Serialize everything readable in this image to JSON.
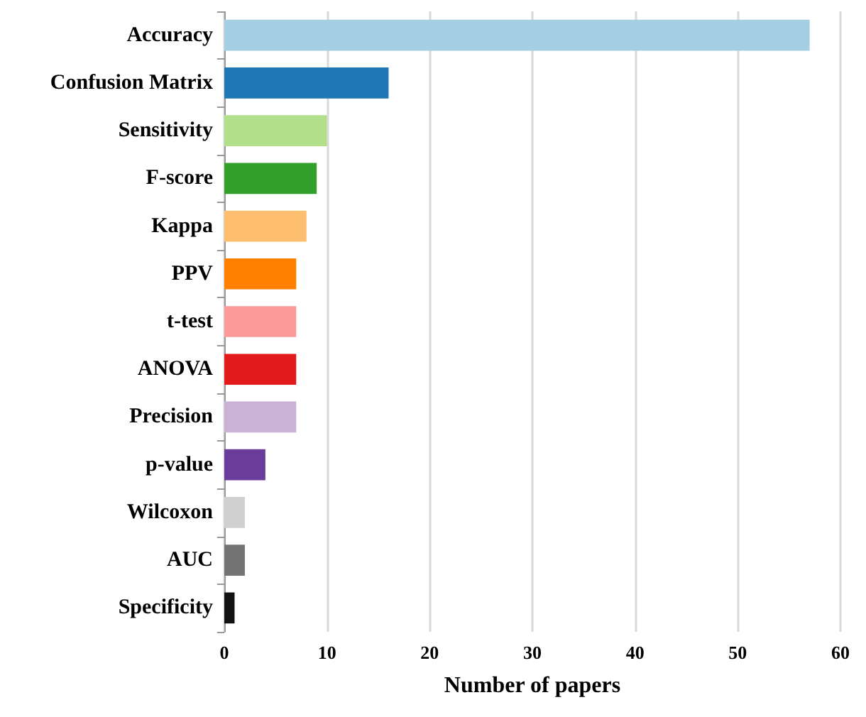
{
  "chart_data": {
    "type": "bar",
    "orientation": "horizontal",
    "xlabel": "Number of papers",
    "categories": [
      "Accuracy",
      "Confusion Matrix",
      "Sensitivity",
      "F-score",
      "Kappa",
      "PPV",
      "t-test",
      "ANOVA",
      "Precision",
      "p-value",
      "Wilcoxon",
      "AUC",
      "Specificity"
    ],
    "values": [
      57,
      16,
      10,
      9,
      8,
      7,
      7,
      7,
      7,
      4,
      2,
      2,
      1
    ],
    "colors": [
      "#a6cee3",
      "#1f78b4",
      "#b2df8a",
      "#33a02c",
      "#fdbf6f",
      "#ff7f00",
      "#fb9a99",
      "#e31a1c",
      "#cab2d6",
      "#6a3d9a",
      "#d0d0d0",
      "#737373",
      "#111111"
    ],
    "xlim": [
      0,
      60
    ],
    "xticks": [
      0,
      10,
      20,
      30,
      40,
      50,
      60
    ],
    "grid": "x"
  }
}
